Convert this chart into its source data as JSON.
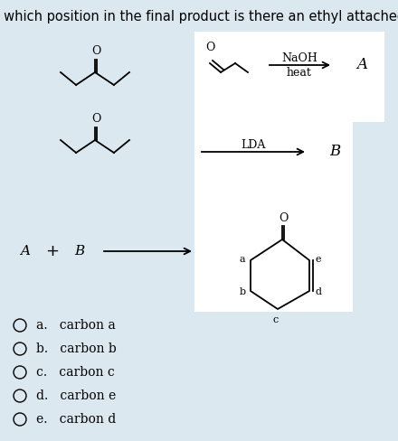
{
  "title": "At which position in the final product is there an ethyl attached?",
  "title_fontsize": 10.5,
  "bg_color": "#dce8f0",
  "white_box_color": "#ffffff",
  "answer_options": [
    "a.   carbon a",
    "b.   carbon b",
    "c.   carbon c",
    "d.   carbon e",
    "e.   carbon d"
  ],
  "naoh_text": "NaOH",
  "heat_text": "heat",
  "lda_text": "LDA",
  "A_label": "A",
  "B_label": "B",
  "plus_label": "+",
  "line_color": "#000000",
  "line_width": 1.3
}
